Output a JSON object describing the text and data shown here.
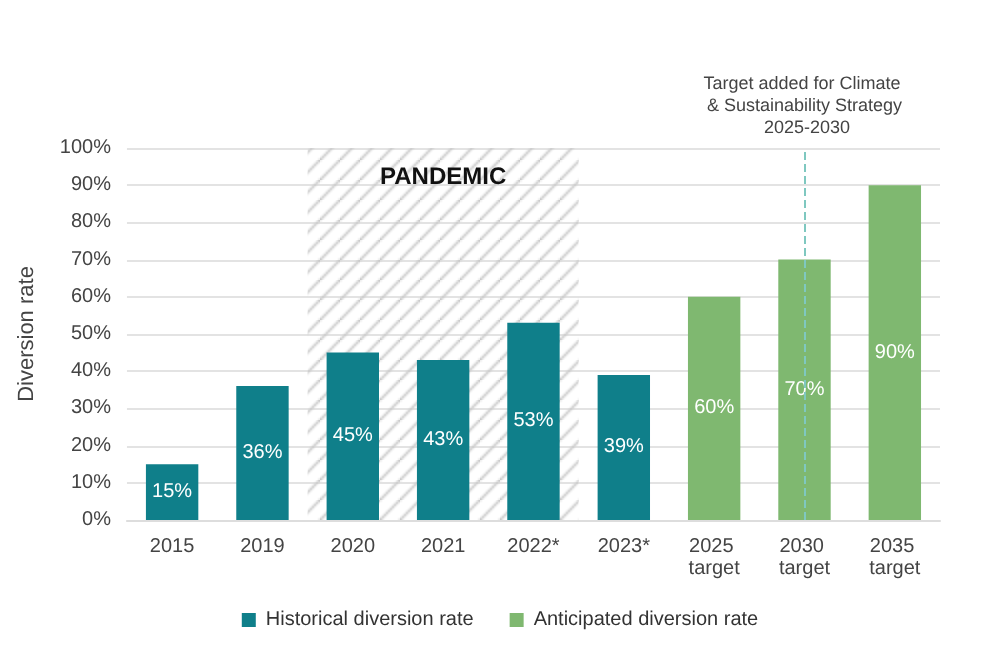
{
  "chart_data": {
    "type": "bar",
    "ylabel": "Diversion rate",
    "categories": [
      "2015",
      "2019",
      "2020",
      "2021",
      "2022*",
      "2023*",
      "2025 target",
      "2030 target",
      "2035 target"
    ],
    "series": [
      {
        "name": "Historical diversion rate",
        "color": "#0f7f8a",
        "values": [
          15,
          36,
          45,
          43,
          53,
          39,
          null,
          null,
          null
        ],
        "value_labels": [
          "15%",
          "36%",
          "45%",
          "43%",
          "53%",
          "39%",
          null,
          null,
          null
        ]
      },
      {
        "name": "Anticipated diversion rate",
        "color": "#7fb870",
        "values": [
          null,
          null,
          null,
          null,
          null,
          null,
          60,
          70,
          90
        ],
        "value_labels": [
          null,
          null,
          null,
          null,
          null,
          null,
          "60%",
          "70%",
          "90%"
        ]
      }
    ],
    "ylim": [
      0,
      100
    ],
    "yticks": [
      {
        "value": 0,
        "label": "0%"
      },
      {
        "value": 10,
        "label": "10%"
      },
      {
        "value": 20,
        "label": "20%"
      },
      {
        "value": 30,
        "label": "30%"
      },
      {
        "value": 40,
        "label": "40%"
      },
      {
        "value": 50,
        "label": "50%"
      },
      {
        "value": 60,
        "label": "60%"
      },
      {
        "value": 70,
        "label": "70%"
      },
      {
        "value": 80,
        "label": "80%"
      },
      {
        "value": 90,
        "label": "90%"
      },
      {
        "value": 100,
        "label": "100%"
      }
    ],
    "bands": [
      {
        "axis": "x",
        "from": "2020",
        "to": "2022*",
        "label": "PANDEMIC",
        "color": "#c8c8c8"
      }
    ],
    "ref_lines": [
      {
        "axis": "x",
        "value": "2030 target",
        "label": "Target added for Climate & Sustainability Strategy 2025-2030",
        "color": "#7fc8c0",
        "line_style": "dashed"
      }
    ],
    "grid": "y",
    "legend": "bottom"
  }
}
